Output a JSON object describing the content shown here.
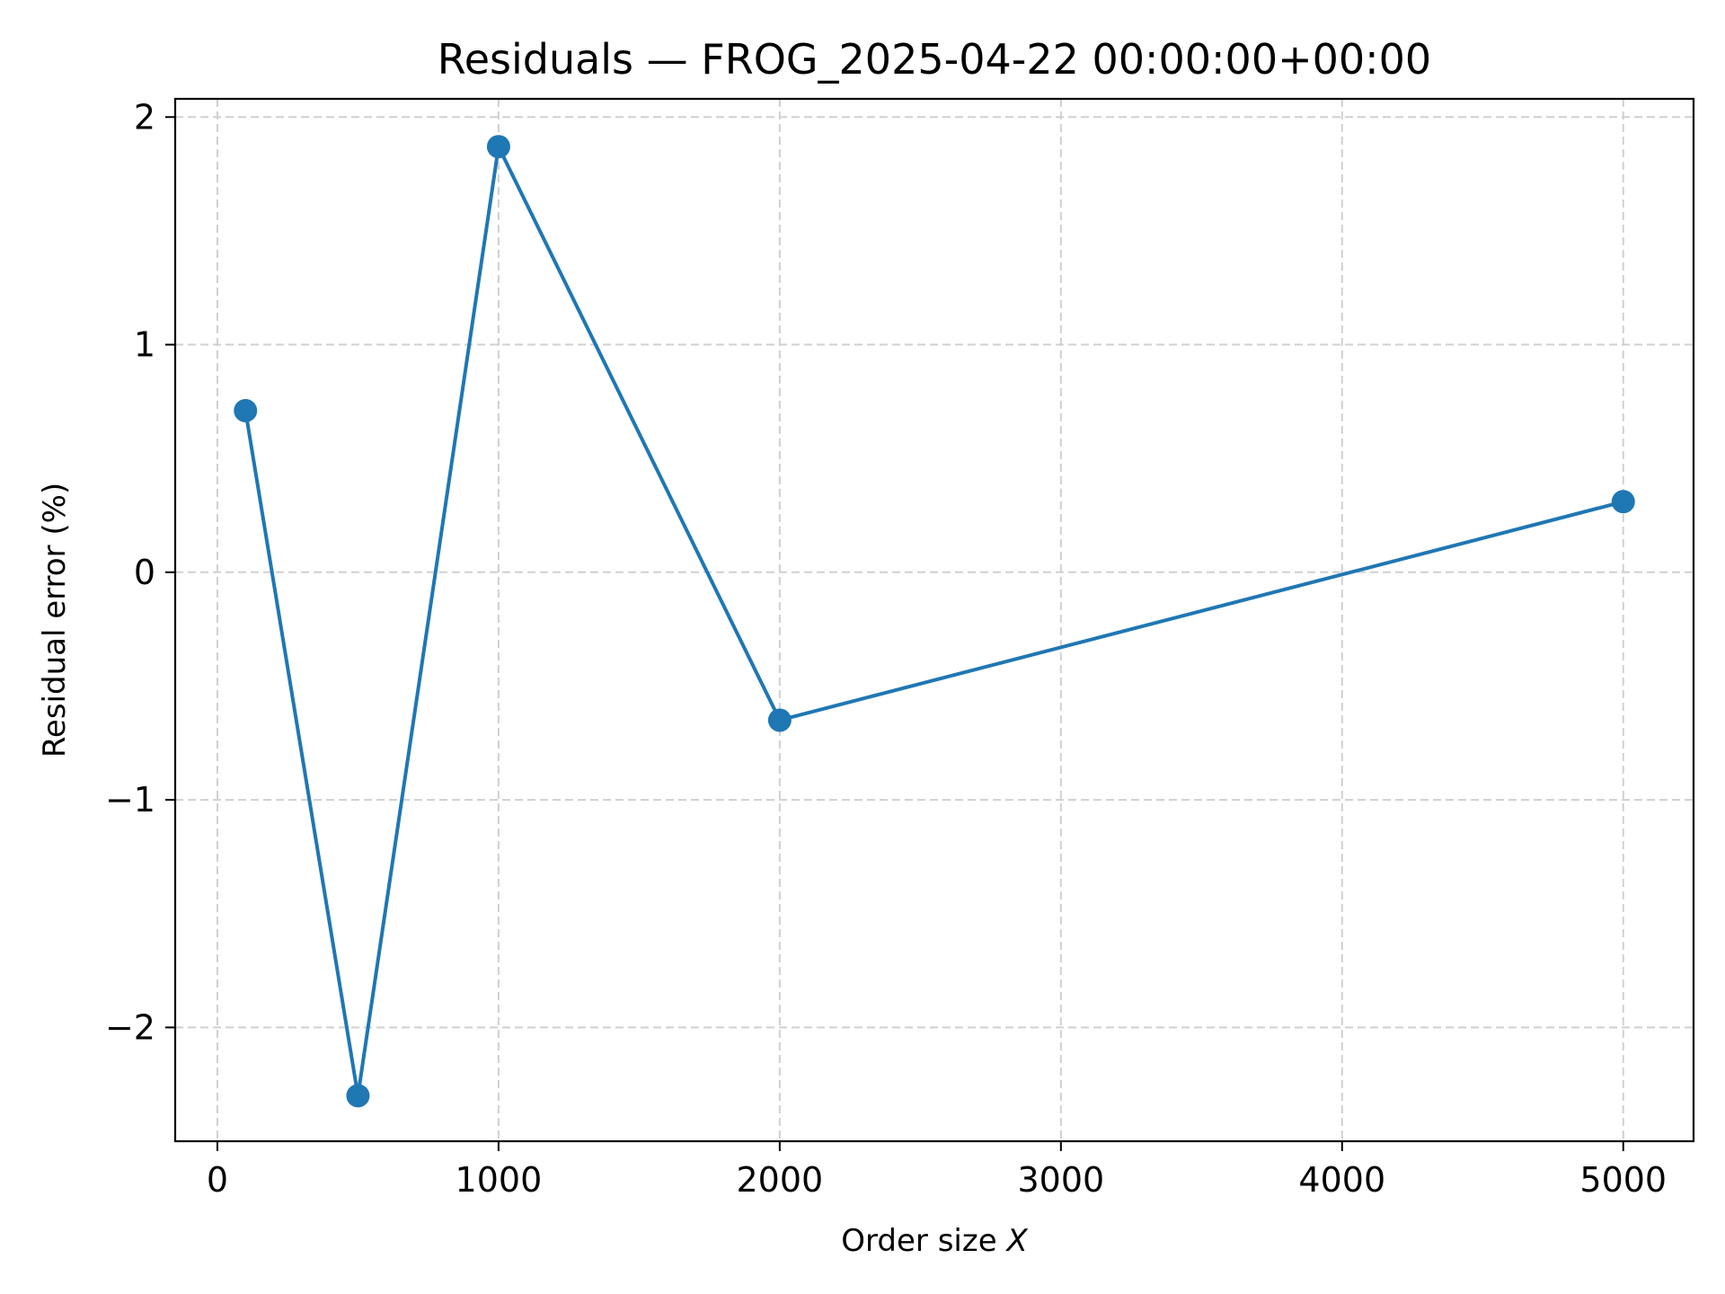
{
  "chart_data": {
    "type": "line",
    "title": "Residuals — FROG_2025-04-22 00:00:00+00:00",
    "xlabel": "Order size",
    "xlabel_var": "X",
    "ylabel": "Residual error (%)",
    "xlim": [
      -150,
      5250
    ],
    "ylim": [
      -2.5,
      2.08
    ],
    "xticks": [
      0,
      1000,
      2000,
      3000,
      4000,
      5000
    ],
    "xtick_labels": [
      "0",
      "1000",
      "2000",
      "3000",
      "4000",
      "5000"
    ],
    "yticks": [
      -2,
      -1,
      0,
      1,
      2
    ],
    "ytick_labels": [
      "−2",
      "−1",
      "0",
      "1",
      "2"
    ],
    "grid": true,
    "grid_style": "dashed",
    "legend": "none",
    "series": [
      {
        "color": "#1f77b4",
        "marker": "circle",
        "x": [
          100,
          500,
          1000,
          2000,
          5000
        ],
        "y": [
          0.71,
          -2.3,
          1.87,
          -0.65,
          0.31
        ]
      }
    ]
  }
}
